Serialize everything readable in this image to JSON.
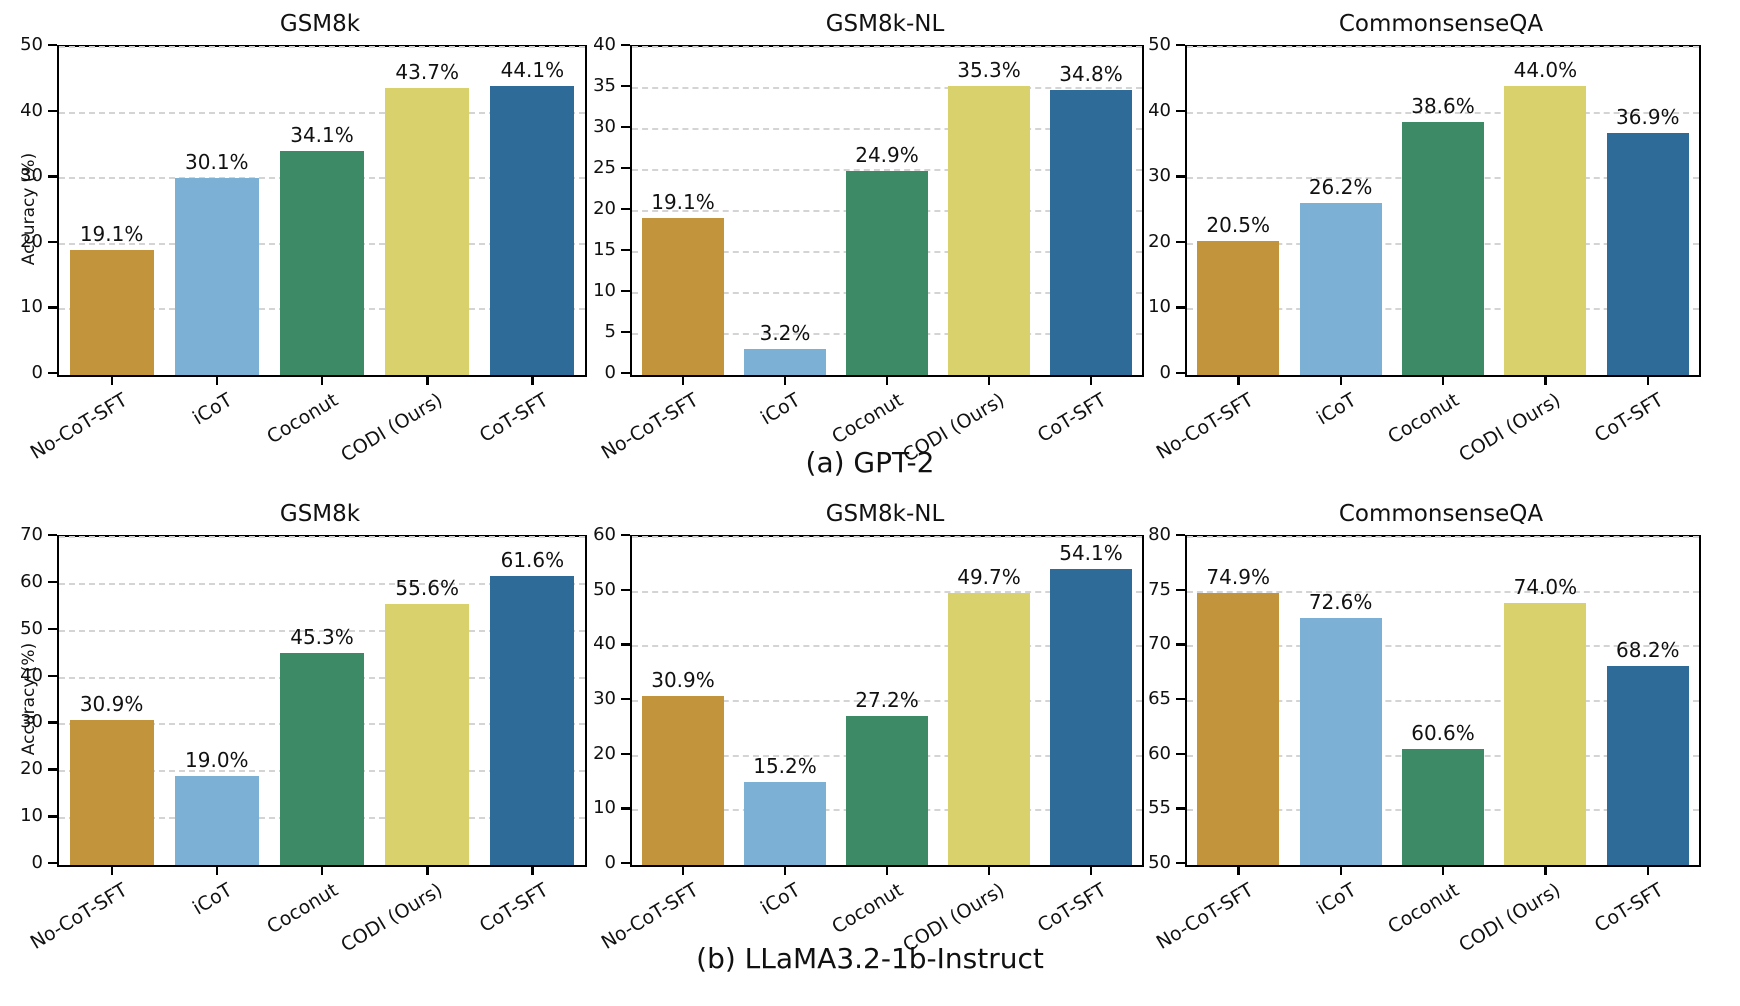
{
  "figure": {
    "caption_a": "(a) GPT-2",
    "caption_b": "(b) LLaMA3.2-1b-Instruct"
  },
  "colors": {
    "bar_palette": [
      "#c2943c",
      "#7db0d5",
      "#3d8a66",
      "#d9d26c",
      "#2f6b99"
    ],
    "gridline": "#d4d4d4",
    "axis": "#000000",
    "text": "#111111"
  },
  "chart_data": [
    {
      "type": "bar",
      "group": "(a) GPT-2",
      "row": 0,
      "col": 0,
      "title": "GSM8k",
      "ylabel": "Accuracy (%)",
      "ylim": [
        0,
        50
      ],
      "ytick_step": 10,
      "grid": "dashed-horizontal",
      "legend": "none",
      "categories": [
        "No-CoT-SFT",
        "iCoT",
        "Coconut",
        "CODI (Ours)",
        "CoT-SFT"
      ],
      "values": [
        19.1,
        30.1,
        34.1,
        43.7,
        44.1
      ],
      "value_labels": [
        "19.1%",
        "30.1%",
        "34.1%",
        "43.7%",
        "44.1%"
      ]
    },
    {
      "type": "bar",
      "group": "(a) GPT-2",
      "row": 0,
      "col": 1,
      "title": "GSM8k-NL",
      "ylabel": "",
      "ylim": [
        0,
        40
      ],
      "ytick_step": 5,
      "grid": "dashed-horizontal",
      "legend": "none",
      "categories": [
        "No-CoT-SFT",
        "iCoT",
        "Coconut",
        "CODI (Ours)",
        "CoT-SFT"
      ],
      "values": [
        19.1,
        3.2,
        24.9,
        35.3,
        34.8
      ],
      "value_labels": [
        "19.1%",
        "3.2%",
        "24.9%",
        "35.3%",
        "34.8%"
      ]
    },
    {
      "type": "bar",
      "group": "(a) GPT-2",
      "row": 0,
      "col": 2,
      "title": "CommonsenseQA",
      "ylabel": "",
      "ylim": [
        0,
        50
      ],
      "ytick_step": 10,
      "grid": "dashed-horizontal",
      "legend": "none",
      "categories": [
        "No-CoT-SFT",
        "iCoT",
        "Coconut",
        "CODI (Ours)",
        "CoT-SFT"
      ],
      "values": [
        20.5,
        26.2,
        38.6,
        44.0,
        36.9
      ],
      "value_labels": [
        "20.5%",
        "26.2%",
        "38.6%",
        "44.0%",
        "36.9%"
      ]
    },
    {
      "type": "bar",
      "group": "(b) LLaMA3.2-1b-Instruct",
      "row": 1,
      "col": 0,
      "title": "GSM8k",
      "ylabel": "Accuracy (%)",
      "ylim": [
        0,
        70
      ],
      "ytick_step": 10,
      "grid": "dashed-horizontal",
      "legend": "none",
      "categories": [
        "No-CoT-SFT",
        "iCoT",
        "Coconut",
        "CODI (Ours)",
        "CoT-SFT"
      ],
      "values": [
        30.9,
        19.0,
        45.3,
        55.6,
        61.6
      ],
      "value_labels": [
        "30.9%",
        "19.0%",
        "45.3%",
        "55.6%",
        "61.6%"
      ]
    },
    {
      "type": "bar",
      "group": "(b) LLaMA3.2-1b-Instruct",
      "row": 1,
      "col": 1,
      "title": "GSM8k-NL",
      "ylabel": "",
      "ylim": [
        0,
        60
      ],
      "ytick_step": 10,
      "grid": "dashed-horizontal",
      "legend": "none",
      "categories": [
        "No-CoT-SFT",
        "iCoT",
        "Coconut",
        "CODI (Ours)",
        "CoT-SFT"
      ],
      "values": [
        30.9,
        15.2,
        27.2,
        49.7,
        54.1
      ],
      "value_labels": [
        "30.9%",
        "15.2%",
        "27.2%",
        "49.7%",
        "54.1%"
      ]
    },
    {
      "type": "bar",
      "group": "(b) LLaMA3.2-1b-Instruct",
      "row": 1,
      "col": 2,
      "title": "CommonsenseQA",
      "ylabel": "",
      "ylim": [
        50,
        80
      ],
      "ytick_step": 5,
      "grid": "dashed-horizontal",
      "legend": "none",
      "categories": [
        "No-CoT-SFT",
        "iCoT",
        "Coconut",
        "CODI (Ours)",
        "CoT-SFT"
      ],
      "values": [
        74.9,
        72.6,
        60.6,
        74.0,
        68.2
      ],
      "value_labels": [
        "74.9%",
        "72.6%",
        "60.6%",
        "74.0%",
        "68.2%"
      ]
    }
  ]
}
